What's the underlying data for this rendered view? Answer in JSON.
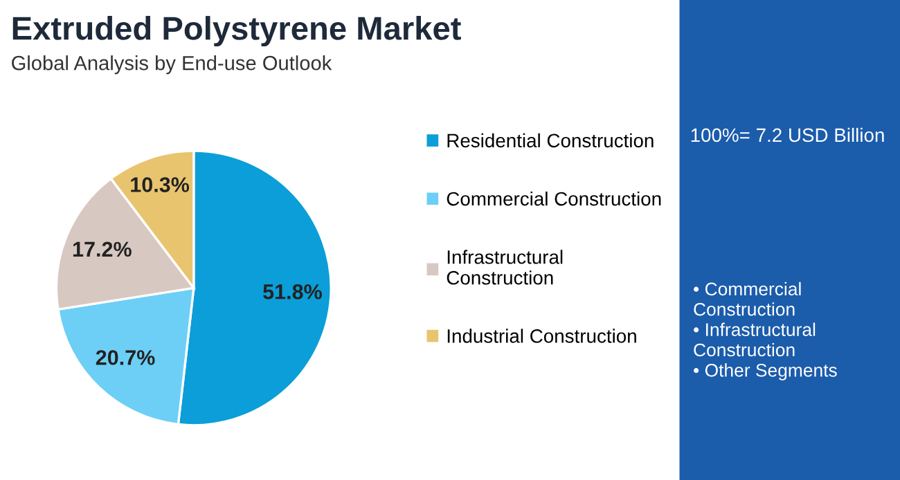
{
  "chart_data": {
    "type": "pie",
    "title": "Extruded Polystyrene Market",
    "subtitle": "Global Analysis by End-use Outlook",
    "categories": [
      "Residential Construction",
      "Commercial Construction",
      "Infrastructural Construction",
      "Industrial Construction"
    ],
    "values": [
      51.8,
      20.7,
      17.2,
      10.3
    ],
    "colors": [
      "#0b9ed8",
      "#6dcff6",
      "#d8c8c2",
      "#e9c46f"
    ],
    "value_labels": [
      "51.8%",
      "20.7%",
      "17.2%",
      "10.3%"
    ],
    "legend": "right",
    "annotations": [
      "100%= 7.2 USD Billion",
      "• Commercial\nConstruction\n• Infrastructural\nConstruction\n• Other Segments"
    ]
  }
}
